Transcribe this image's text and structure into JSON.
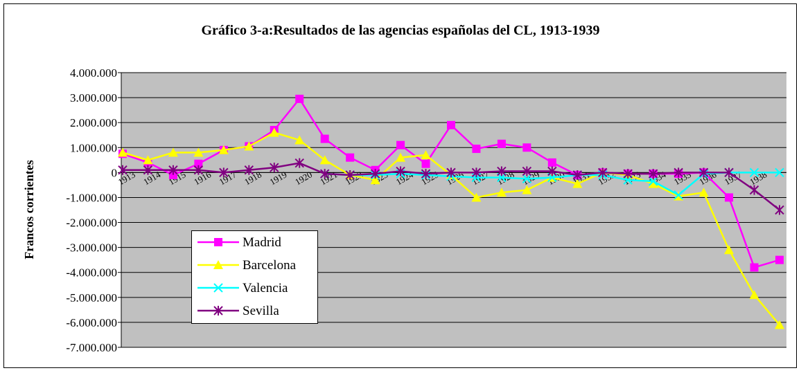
{
  "chart_data": {
    "type": "line",
    "title": "Gráfico 3-a:Resultados de las agencias españolas del CL, 1913-1939",
    "y_label": "Francos corrientes",
    "categories": [
      "1913",
      "1914",
      "1915",
      "1916",
      "1917",
      "1918",
      "1919",
      "1920",
      "1921",
      "1922",
      "1923",
      "1924",
      "1925",
      "1926",
      "1927",
      "1928",
      "1929",
      "1930",
      "1931",
      "1932",
      "1933",
      "1934",
      "1935",
      "1936",
      "1937",
      "1938",
      null
    ],
    "series": [
      {
        "name": "Madrid",
        "color": "#ff00ff",
        "marker": "square",
        "values": [
          750000,
          400000,
          -100000,
          350000,
          900000,
          1050000,
          1700000,
          2950000,
          1350000,
          600000,
          100000,
          1100000,
          350000,
          1900000,
          950000,
          1150000,
          1000000,
          400000,
          -100000,
          0,
          -50000,
          -50000,
          -50000,
          0,
          -1000000,
          -3800000,
          -3500000
        ]
      },
      {
        "name": "Barcelona",
        "color": "#ffff00",
        "marker": "triangle",
        "values": [
          800000,
          500000,
          800000,
          800000,
          900000,
          1050000,
          1600000,
          1300000,
          500000,
          -100000,
          -300000,
          600000,
          700000,
          -100000,
          -1000000,
          -800000,
          -700000,
          -200000,
          -450000,
          0,
          -100000,
          -450000,
          -950000,
          -800000,
          -3100000,
          -4900000,
          -6100000
        ]
      },
      {
        "name": "Valencia",
        "color": "#00ffff",
        "marker": "x",
        "values": [
          null,
          null,
          null,
          null,
          null,
          null,
          null,
          null,
          -50000,
          -100000,
          -100000,
          -50000,
          -100000,
          -150000,
          -200000,
          -200000,
          -250000,
          -200000,
          -100000,
          -100000,
          -300000,
          -350000,
          -900000,
          -50000,
          0,
          0,
          0
        ]
      },
      {
        "name": "Sevilla",
        "color": "#800080",
        "marker": "star",
        "values": [
          100000,
          100000,
          100000,
          100000,
          0,
          100000,
          200000,
          380000,
          -50000,
          -100000,
          -50000,
          50000,
          -50000,
          0,
          0,
          50000,
          50000,
          50000,
          -100000,
          0,
          -50000,
          -50000,
          0,
          0,
          0,
          -700000,
          -1500000
        ]
      }
    ],
    "ylim": [
      -7000000,
      4000000
    ],
    "yticks": [
      {
        "value": -7000000,
        "label": "-7.000.000"
      },
      {
        "value": -6000000,
        "label": "-6.000.000"
      },
      {
        "value": -5000000,
        "label": "-5.000.000"
      },
      {
        "value": -4000000,
        "label": "-4.000.000"
      },
      {
        "value": -3000000,
        "label": "-3.000.000"
      },
      {
        "value": -2000000,
        "label": "-2.000.000"
      },
      {
        "value": -1000000,
        "label": "-1.000.000"
      },
      0,
      {
        "value": 1000000,
        "label": "1.000.000"
      },
      {
        "value": 2000000,
        "label": "2.000.000"
      },
      {
        "value": 3000000,
        "label": "3.000.000"
      },
      {
        "value": 4000000,
        "label": "4.000.000"
      }
    ],
    "grid": true,
    "plot_background": "#c0c0c0",
    "legend": "lower left"
  }
}
